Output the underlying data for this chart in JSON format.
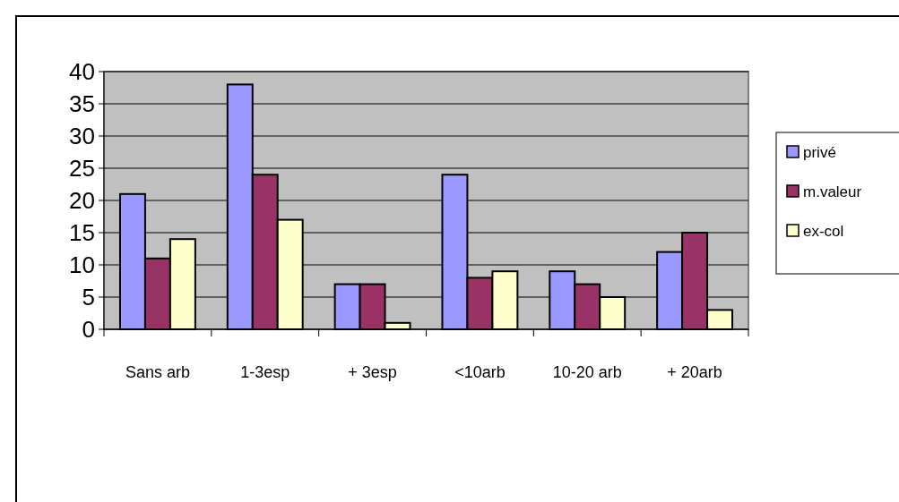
{
  "chart_data": {
    "type": "bar",
    "categories": [
      "Sans arb",
      "1-3esp",
      "+  3esp",
      "<10arb",
      "10-20 arb",
      "+  20arb"
    ],
    "series": [
      {
        "name": "privé",
        "color": "#9999ff",
        "values": [
          21,
          38,
          7,
          24,
          9,
          12
        ]
      },
      {
        "name": "m.valeur",
        "color": "#993366",
        "values": [
          11,
          24,
          7,
          8,
          7,
          15
        ]
      },
      {
        "name": "ex-col",
        "color": "#ffffcc",
        "values": [
          14,
          17,
          1,
          9,
          5,
          3
        ]
      }
    ],
    "ylim": [
      0,
      40
    ],
    "yticks": [
      0,
      5,
      10,
      15,
      20,
      25,
      30,
      35,
      40
    ],
    "grid": "y",
    "legend": "right"
  }
}
